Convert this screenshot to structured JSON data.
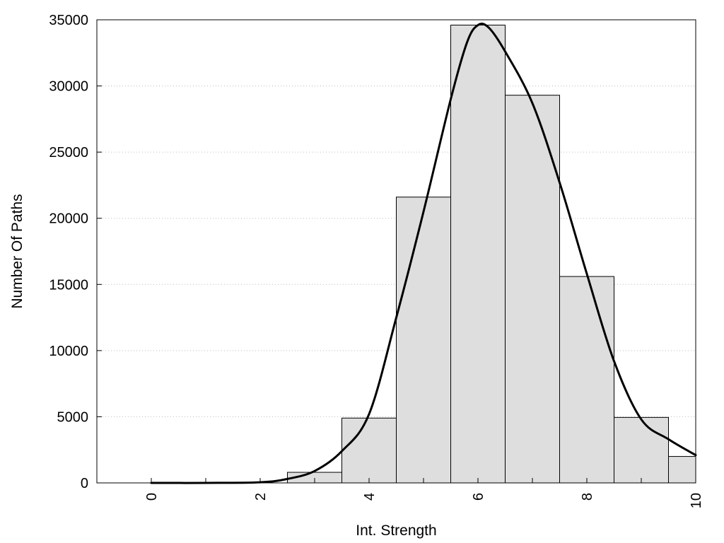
{
  "chart_data": {
    "type": "bar",
    "title": "",
    "xlabel": "Int. Strength",
    "ylabel": "Number Of Paths",
    "xlim": [
      -1,
      10
    ],
    "ylim": [
      0,
      35000
    ],
    "grid": {
      "y": true,
      "x": false,
      "style": "dotted"
    },
    "legend": "none",
    "x_ticks": [
      {
        "value": 0,
        "label": "0"
      },
      {
        "value": 2,
        "label": "2"
      },
      {
        "value": 4,
        "label": "4"
      },
      {
        "value": 6,
        "label": "6"
      },
      {
        "value": 8,
        "label": "8"
      },
      {
        "value": 10,
        "label": "10"
      }
    ],
    "y_ticks": [
      {
        "value": 0,
        "label": "0"
      },
      {
        "value": 5000,
        "label": "5000"
      },
      {
        "value": 10000,
        "label": "10000"
      },
      {
        "value": 15000,
        "label": "15000"
      },
      {
        "value": 20000,
        "label": "20000"
      },
      {
        "value": 25000,
        "label": "25000"
      },
      {
        "value": 30000,
        "label": "30000"
      },
      {
        "value": 35000,
        "label": "35000"
      }
    ],
    "bars": [
      {
        "x": 0,
        "value": 0
      },
      {
        "x": 1,
        "value": 0
      },
      {
        "x": 2,
        "value": 0
      },
      {
        "x": 3,
        "value": 800
      },
      {
        "x": 4,
        "value": 4900
      },
      {
        "x": 5,
        "value": 21600
      },
      {
        "x": 6,
        "value": 34600
      },
      {
        "x": 7,
        "value": 29300
      },
      {
        "x": 8,
        "value": 15600
      },
      {
        "x": 9,
        "value": 4950
      },
      {
        "x": 10,
        "value": 2000
      }
    ],
    "bar_width": 1,
    "curve": {
      "x": [
        0,
        1,
        2,
        2.5,
        3,
        3.5,
        4,
        4.5,
        5,
        5.5,
        5.8,
        6,
        6.2,
        6.5,
        7,
        7.5,
        8,
        8.5,
        9,
        9.5,
        10
      ],
      "y": [
        0,
        0,
        50,
        300,
        900,
        2400,
        5200,
        12500,
        20500,
        29000,
        33300,
        34600,
        34400,
        32600,
        28700,
        22700,
        15800,
        9200,
        4800,
        3300,
        2100
      ]
    },
    "colors": {
      "bar_fill": "#dedede",
      "bar_stroke": "#000000",
      "curve": "#000000",
      "grid": "#bbbbbb"
    }
  }
}
